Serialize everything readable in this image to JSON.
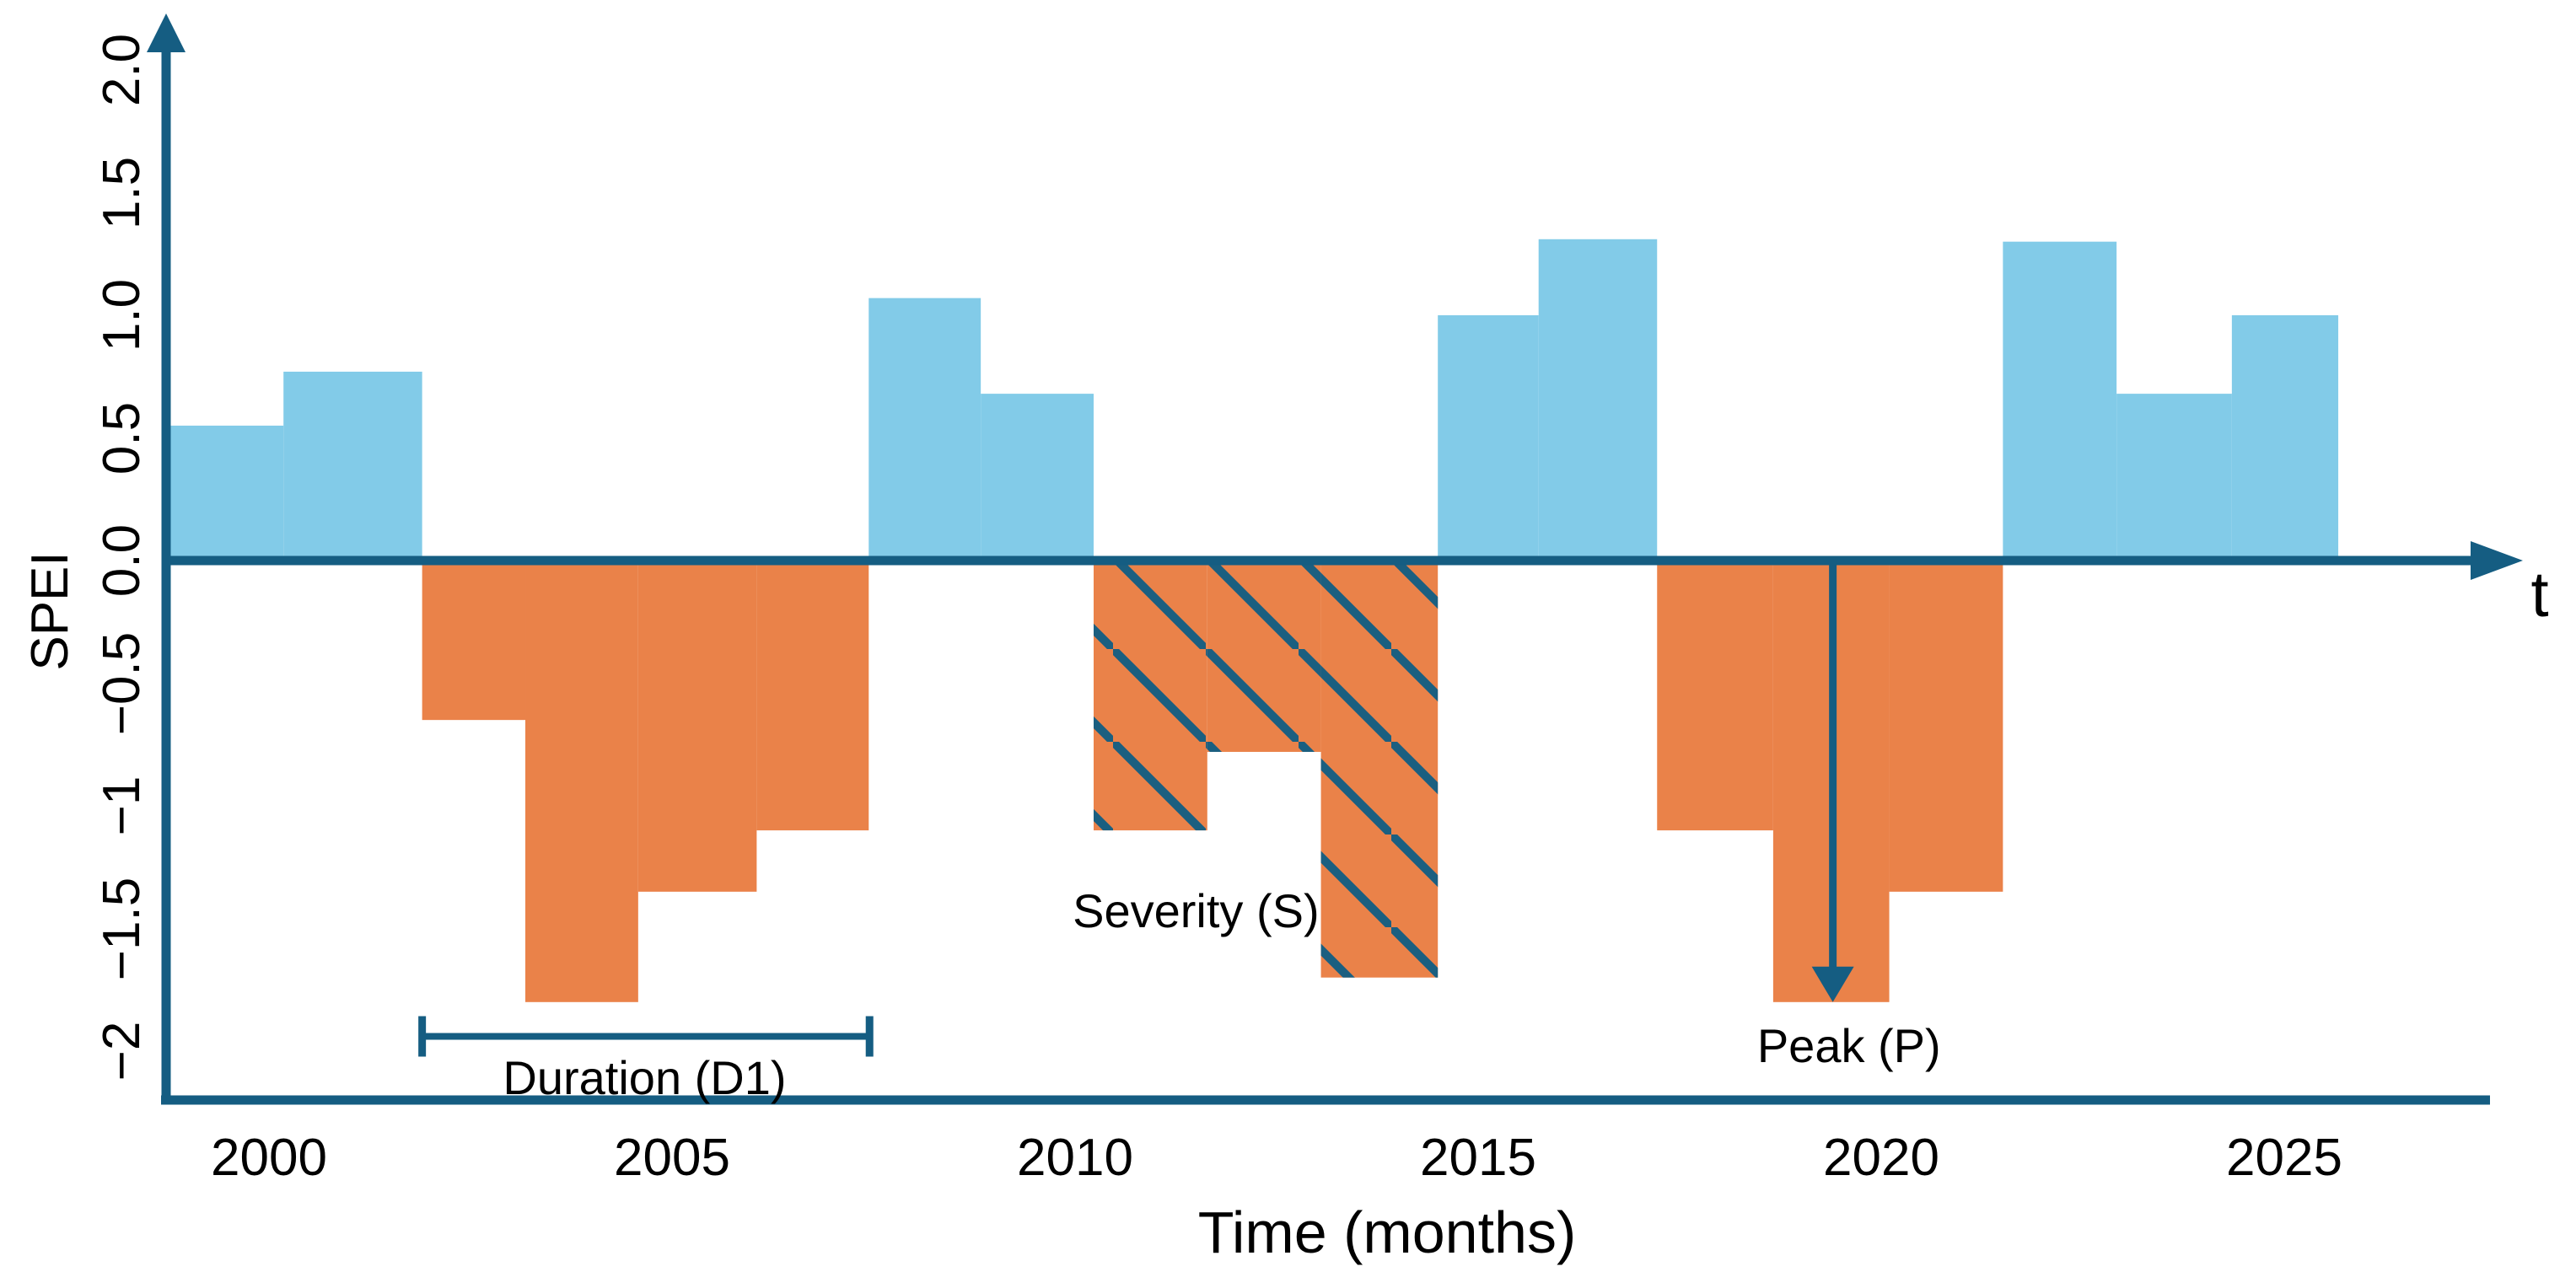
{
  "chart_data": {
    "type": "area",
    "subtype": "piecewise-constant step area (drought schematic)",
    "title": "",
    "xlabel": "Time (months)",
    "ylabel": "SPEI",
    "x_axis_end_label": "t",
    "grid": false,
    "legend_position": "none",
    "ylim": [
      -2.2,
      2.2
    ],
    "xlim_years": [
      1998.7,
      2027.9
    ],
    "y_ticks": [
      {
        "label": "2.0",
        "value": 2.0
      },
      {
        "label": "1.5",
        "value": 1.5
      },
      {
        "label": "1.0",
        "value": 1.0
      },
      {
        "label": "0.5",
        "value": 0.5
      },
      {
        "label": "0.0",
        "value": 0.0
      },
      {
        "label": "−0.5",
        "value": -0.5
      },
      {
        "label": "−1",
        "value": -1.0
      },
      {
        "label": "−1.5",
        "value": -1.5
      },
      {
        "label": "−2",
        "value": -2.0
      }
    ],
    "x_ticks": [
      {
        "label": "2000",
        "year": 2000
      },
      {
        "label": "2005",
        "year": 2005
      },
      {
        "label": "2010",
        "year": 2010
      },
      {
        "label": "2015",
        "year": 2015
      },
      {
        "label": "2020",
        "year": 2020
      },
      {
        "label": "2025",
        "year": 2025
      }
    ],
    "segments": [
      {
        "start_year": 1998.72,
        "end_year": 2000.18,
        "value": 0.55,
        "phase": "wet",
        "hatched": false
      },
      {
        "start_year": 2000.18,
        "end_year": 2001.9,
        "value": 0.77,
        "phase": "wet",
        "hatched": false
      },
      {
        "start_year": 2001.9,
        "end_year": 2003.18,
        "value": -0.65,
        "phase": "dry",
        "hatched": false
      },
      {
        "start_year": 2003.18,
        "end_year": 2004.58,
        "value": -1.8,
        "phase": "dry",
        "hatched": false
      },
      {
        "start_year": 2004.58,
        "end_year": 2006.05,
        "value": -1.35,
        "phase": "dry",
        "hatched": false
      },
      {
        "start_year": 2006.05,
        "end_year": 2007.44,
        "value": -1.1,
        "phase": "dry",
        "hatched": false
      },
      {
        "start_year": 2007.44,
        "end_year": 2008.83,
        "value": 1.07,
        "phase": "wet",
        "hatched": false
      },
      {
        "start_year": 2008.83,
        "end_year": 2010.23,
        "value": 0.68,
        "phase": "wet",
        "hatched": false
      },
      {
        "start_year": 2010.23,
        "end_year": 2011.64,
        "value": -1.1,
        "phase": "dry",
        "hatched": true
      },
      {
        "start_year": 2011.64,
        "end_year": 2013.05,
        "value": -0.78,
        "phase": "dry",
        "hatched": true
      },
      {
        "start_year": 2013.05,
        "end_year": 2014.5,
        "value": -1.7,
        "phase": "dry",
        "hatched": true
      },
      {
        "start_year": 2014.5,
        "end_year": 2015.75,
        "value": 1.0,
        "phase": "wet",
        "hatched": false
      },
      {
        "start_year": 2015.75,
        "end_year": 2017.22,
        "value": 1.31,
        "phase": "wet",
        "hatched": false
      },
      {
        "start_year": 2017.22,
        "end_year": 2018.66,
        "value": -1.1,
        "phase": "dry",
        "hatched": false
      },
      {
        "start_year": 2018.66,
        "end_year": 2020.1,
        "value": -1.8,
        "phase": "dry",
        "hatched": false
      },
      {
        "start_year": 2020.1,
        "end_year": 2021.51,
        "value": -1.35,
        "phase": "dry",
        "hatched": false
      },
      {
        "start_year": 2021.51,
        "end_year": 2022.92,
        "value": 1.3,
        "phase": "wet",
        "hatched": false
      },
      {
        "start_year": 2022.92,
        "end_year": 2024.35,
        "value": 0.68,
        "phase": "wet",
        "hatched": false
      },
      {
        "start_year": 2024.35,
        "end_year": 2025.67,
        "value": 1.0,
        "phase": "wet",
        "hatched": false
      }
    ],
    "annotations": {
      "duration": {
        "label": "Duration (D1)",
        "event_start_year": 2001.9,
        "event_end_year": 2007.45,
        "bracket_value": -1.94,
        "label_year": 2004.66,
        "label_value": -2.11
      },
      "severity": {
        "label": "Severity (S)",
        "label_year": 2011.5,
        "label_value": -1.43,
        "applies_to": "hatched drought area 2010-2015"
      },
      "peak": {
        "label": "Peak (P)",
        "arrow_year": 2019.4,
        "arrow_from_value": 0,
        "arrow_to_value": -1.8,
        "label_year": 2019.6,
        "label_value": -1.98
      }
    },
    "colors": {
      "wet": "#82CBE8",
      "dry": "#EA8249",
      "axis": "#155D82",
      "hatch": "#1B5F80",
      "text": "#000000",
      "background": "#ffffff"
    }
  }
}
